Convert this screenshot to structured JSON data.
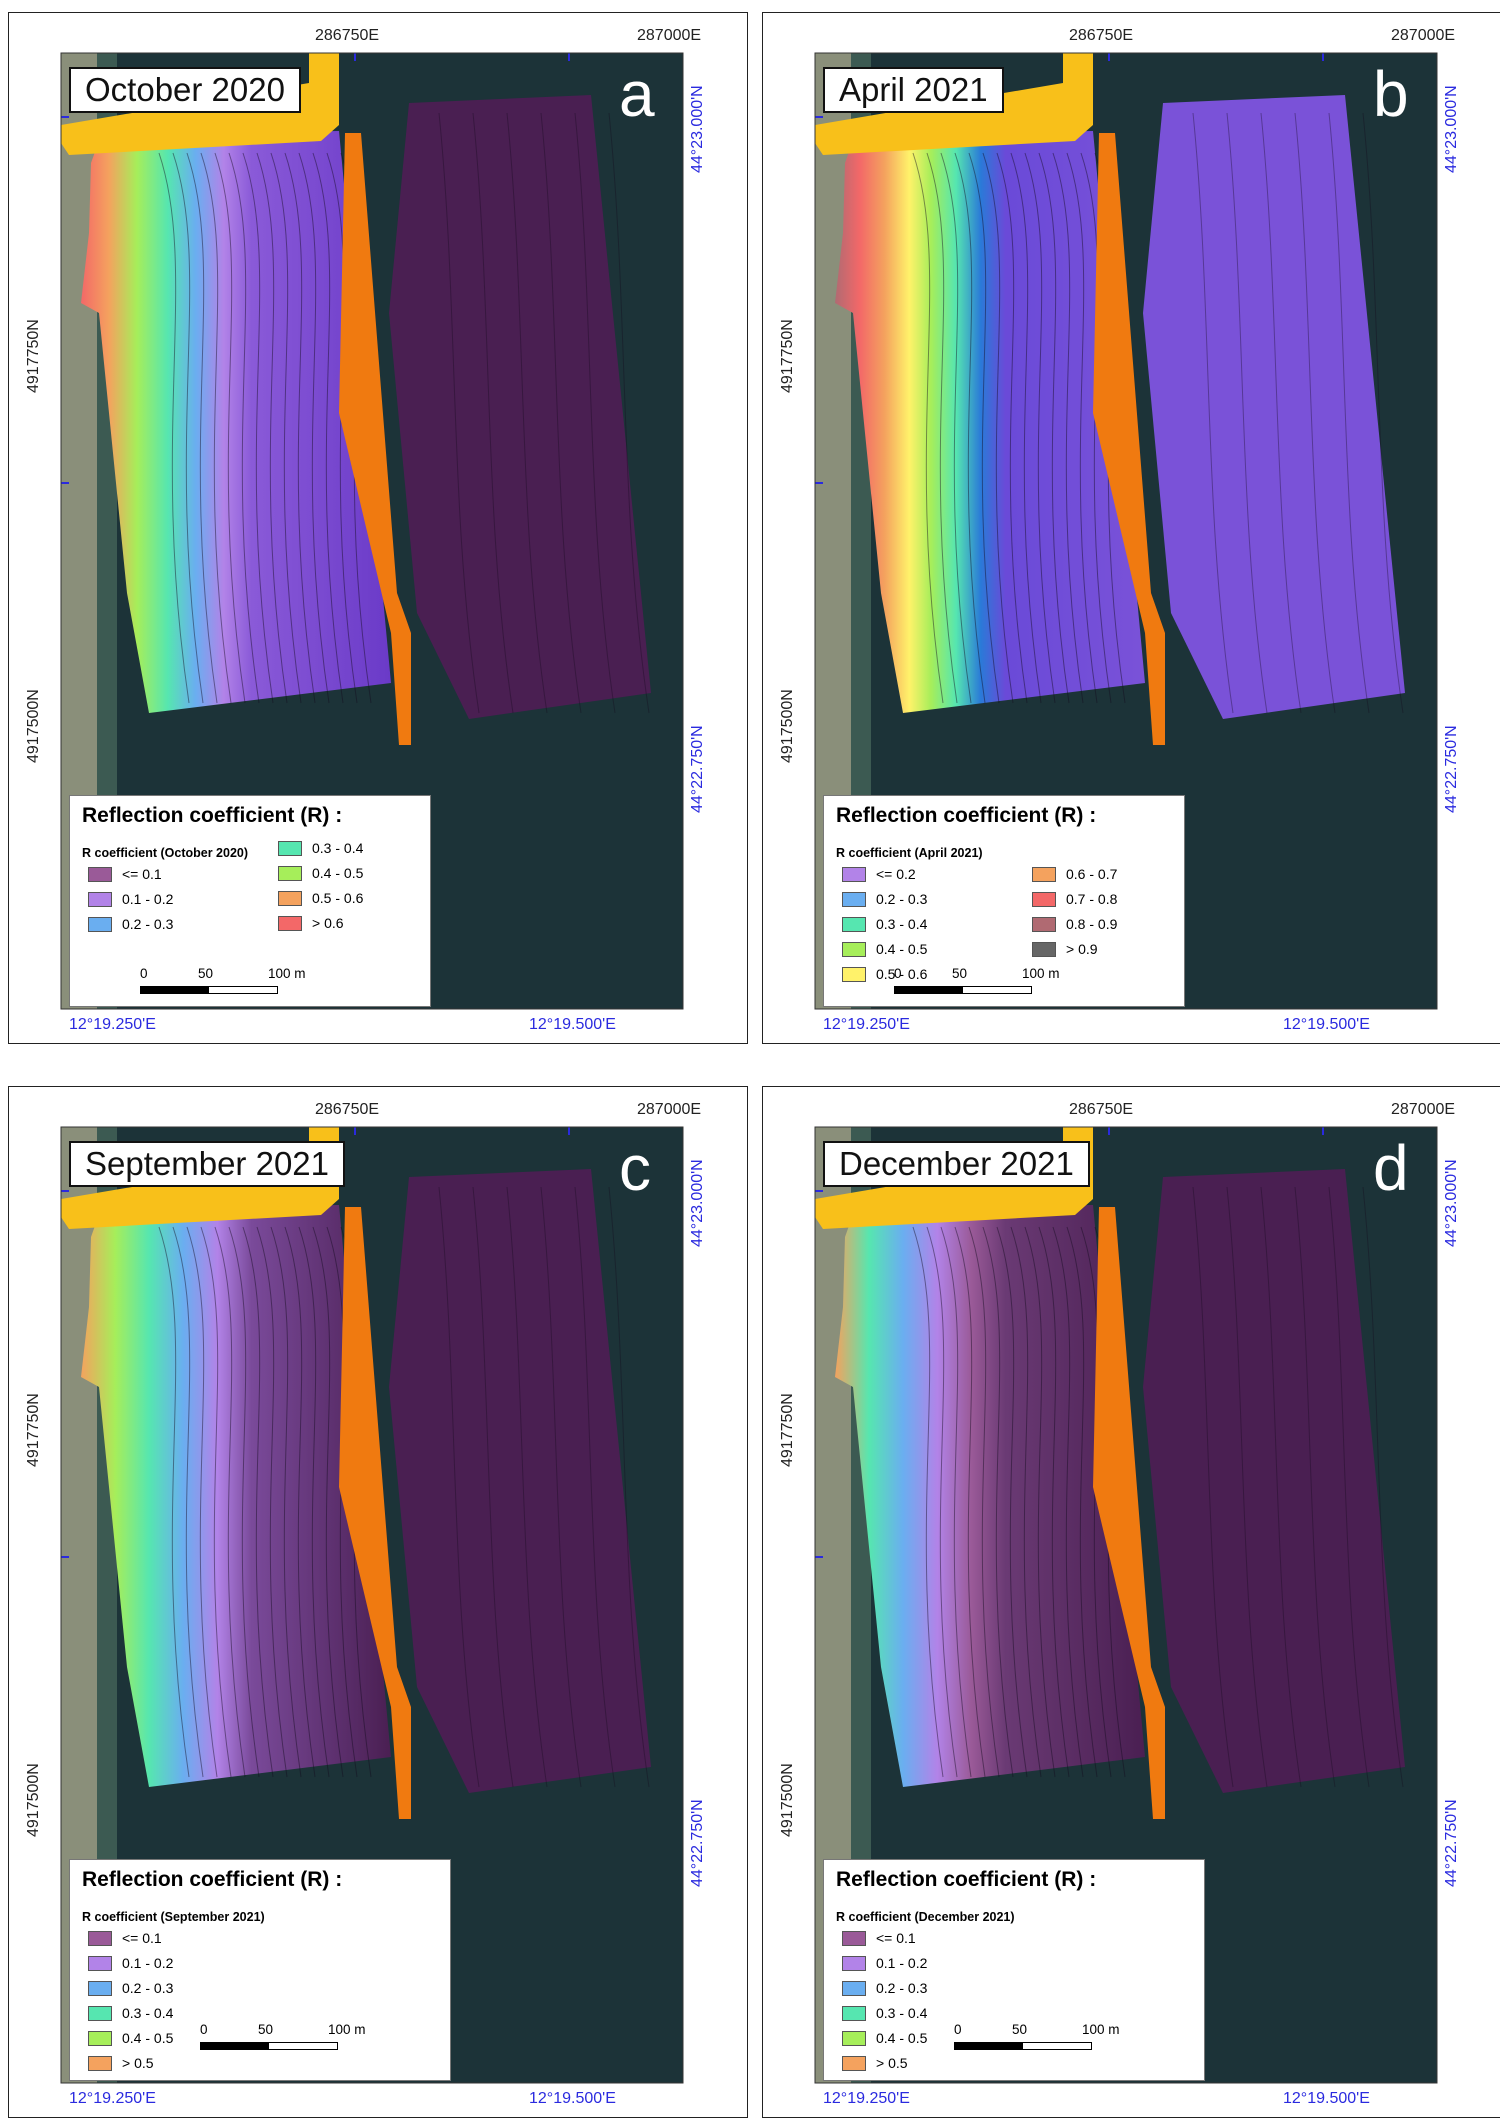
{
  "coords": {
    "top_e1": "286750E",
    "top_e2": "287000E",
    "left_n1": "4917750N",
    "left_n2": "4917500N",
    "right_n1": "44°23.000'N",
    "right_n2": "44°22.750'N",
    "bottom_w1": "12°19.250'E",
    "bottom_w2": "12°19.500'E"
  },
  "legend_title": "Reflection coefficient (R) :",
  "scale": {
    "zero": "0",
    "mid": "50",
    "end": "100 m"
  },
  "colors": {
    "le01": "#9a5a98",
    "c01_02": "#b283e8",
    "c02_03": "#6aaef0",
    "c03_04": "#56e6b0",
    "c04_05": "#a6ee5a",
    "c05_06": "#fff26a",
    "c06_07": "#f4a25e",
    "c07_08": "#f36868",
    "c08_09": "#b06a72",
    "gt09": "#666666",
    "sea": "#1c3338",
    "jetty_yellow": "#f8c01a",
    "jetty_orange": "#f07a10",
    "map_purple": "#4a1f52"
  },
  "panels": [
    {
      "title": "October 2020",
      "letter": "a",
      "legend_sub": "R coefficient (October 2020)",
      "legend_items": [
        {
          "label": "<= 0.1",
          "color": "#9a5a98"
        },
        {
          "label": "0.1  -  0.2",
          "color": "#b283e8"
        },
        {
          "label": "0.2  -  0.3",
          "color": "#6aaef0"
        },
        {
          "label": "0.3  -  0.4",
          "color": "#56e6b0"
        },
        {
          "label": "0.4  -  0.5",
          "color": "#a6ee5a"
        },
        {
          "label": "0.5  -  0.6",
          "color": "#f4a25e"
        },
        {
          "label": "> 0.6",
          "color": "#f36868"
        }
      ]
    },
    {
      "title": "April 2021",
      "letter": "b",
      "legend_sub": "R coefficient (April 2021)",
      "legend_items": [
        {
          "label": "<= 0.2",
          "color": "#b283e8"
        },
        {
          "label": "0.2  -  0.3",
          "color": "#6aaef0"
        },
        {
          "label": "0.3  -  0.4",
          "color": "#56e6b0"
        },
        {
          "label": "0.4  -  0.5",
          "color": "#a6ee5a"
        },
        {
          "label": "0.5  -  0.6",
          "color": "#fff26a"
        },
        {
          "label": "0.6  -  0.7",
          "color": "#f4a25e"
        },
        {
          "label": "0.7  -  0.8",
          "color": "#f36868"
        },
        {
          "label": "0.8  -  0.9",
          "color": "#b06a72"
        },
        {
          "label": "> 0.9",
          "color": "#666666"
        }
      ]
    },
    {
      "title": "September 2021",
      "letter": "c",
      "legend_sub": "R coefficient (September 2021)",
      "legend_items": [
        {
          "label": "<= 0.1",
          "color": "#9a5a98"
        },
        {
          "label": "0.1  -  0.2",
          "color": "#b283e8"
        },
        {
          "label": "0.2  -  0.3",
          "color": "#6aaef0"
        },
        {
          "label": "0.3  -  0.4",
          "color": "#56e6b0"
        },
        {
          "label": "0.4  -  0.5",
          "color": "#a6ee5a"
        },
        {
          "label": "> 0.5",
          "color": "#f4a25e"
        }
      ]
    },
    {
      "title": "December 2021",
      "letter": "d",
      "legend_sub": "R coefficient (December 2021)",
      "legend_items": [
        {
          "label": "<= 0.1",
          "color": "#9a5a98"
        },
        {
          "label": "0.1  -  0.2",
          "color": "#b283e8"
        },
        {
          "label": "0.2  -  0.3",
          "color": "#6aaef0"
        },
        {
          "label": "0.3  -  0.4",
          "color": "#56e6b0"
        },
        {
          "label": "0.4  -  0.5",
          "color": "#a6ee5a"
        },
        {
          "label": "> 0.5",
          "color": "#f4a25e"
        }
      ]
    }
  ]
}
